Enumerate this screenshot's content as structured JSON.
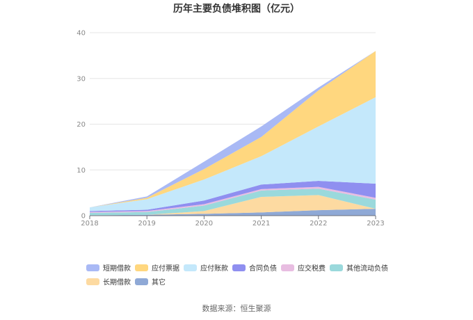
{
  "chart_data": {
    "type": "area",
    "title": "历年主要负债堆积图（亿元）",
    "x": [
      "2018",
      "2019",
      "2020",
      "2021",
      "2022",
      "2023"
    ],
    "ylim": [
      0,
      40
    ],
    "yticks": [
      "0",
      "10",
      "20",
      "30",
      "40"
    ],
    "stacked": true,
    "grid": true,
    "legend_position": "bottom",
    "series": [
      {
        "name": "其它",
        "color": "#8fa9d6",
        "values": [
          0.1,
          0.2,
          0.4,
          0.7,
          1.2,
          1.5
        ]
      },
      {
        "name": "长期借款",
        "color": "#fddaa1",
        "values": [
          0.0,
          0.0,
          0.6,
          3.4,
          3.3,
          0.0
        ]
      },
      {
        "name": "其他流动负债",
        "color": "#9ad9dc",
        "values": [
          0.5,
          0.6,
          1.2,
          1.4,
          1.4,
          2.0
        ]
      },
      {
        "name": "应交税费",
        "color": "#e8bde1",
        "values": [
          0.2,
          0.2,
          0.3,
          0.3,
          0.4,
          0.4
        ]
      },
      {
        "name": "合同负债",
        "color": "#8f8ff0",
        "values": [
          0.2,
          0.3,
          0.8,
          1.0,
          1.3,
          3.1
        ]
      },
      {
        "name": "应付账款",
        "color": "#c4e8fb",
        "values": [
          0.8,
          2.3,
          4.6,
          6.2,
          11.9,
          18.9
        ]
      },
      {
        "name": "应付票据",
        "color": "#ffd77f",
        "values": [
          0.0,
          0.3,
          2.3,
          4.2,
          7.9,
          10.1
        ]
      },
      {
        "name": "短期借款",
        "color": "#a9b9f5",
        "values": [
          0.0,
          0.3,
          1.6,
          2.3,
          0.6,
          0.0
        ]
      }
    ],
    "legend_order": [
      "短期借款",
      "应付票据",
      "应付账款",
      "合同负债",
      "应交税费",
      "其他流动负债",
      "长期借款",
      "其它"
    ],
    "source": "数据来源：恒生聚源"
  }
}
